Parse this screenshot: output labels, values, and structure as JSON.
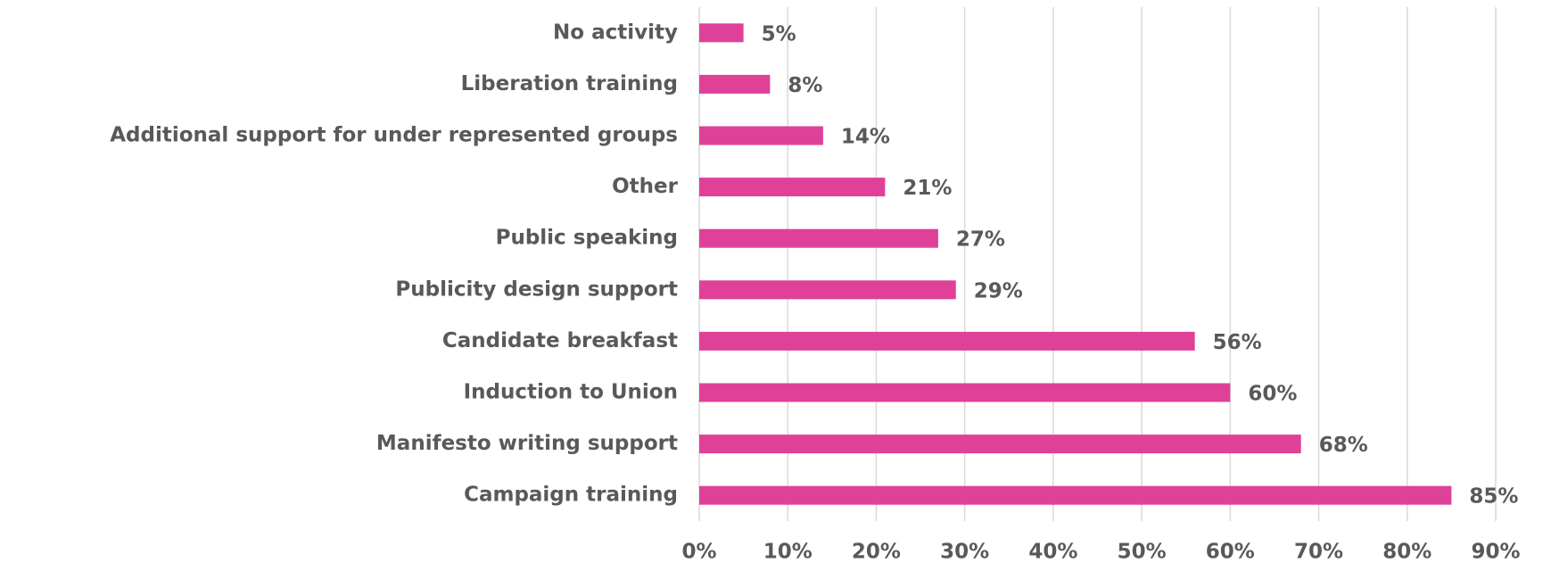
{
  "chart_data": {
    "type": "bar",
    "orientation": "horizontal",
    "categories": [
      "No activity",
      "Liberation training",
      "Additional support for under represented groups",
      "Other",
      "Public speaking",
      "Publicity design support",
      "Candidate breakfast",
      "Induction to Union",
      "Manifesto writing support",
      "Campaign training"
    ],
    "values": [
      5,
      8,
      14,
      21,
      27,
      29,
      56,
      60,
      68,
      85
    ],
    "value_labels": [
      "5%",
      "8%",
      "14%",
      "21%",
      "27%",
      "29%",
      "56%",
      "60%",
      "68%",
      "85%"
    ],
    "color": "#df4199",
    "xlim": [
      0,
      90
    ],
    "xticks": [
      {
        "value": 0,
        "label": "0%"
      },
      {
        "value": 10,
        "label": "10%"
      },
      {
        "value": 20,
        "label": "20%"
      },
      {
        "value": 30,
        "label": "30%"
      },
      {
        "value": 40,
        "label": "40%"
      },
      {
        "value": 50,
        "label": "50%"
      },
      {
        "value": 60,
        "label": "60%"
      },
      {
        "value": 70,
        "label": "70%"
      },
      {
        "value": 80,
        "label": "80%"
      },
      {
        "value": 90,
        "label": "90%"
      }
    ],
    "grid": true
  }
}
